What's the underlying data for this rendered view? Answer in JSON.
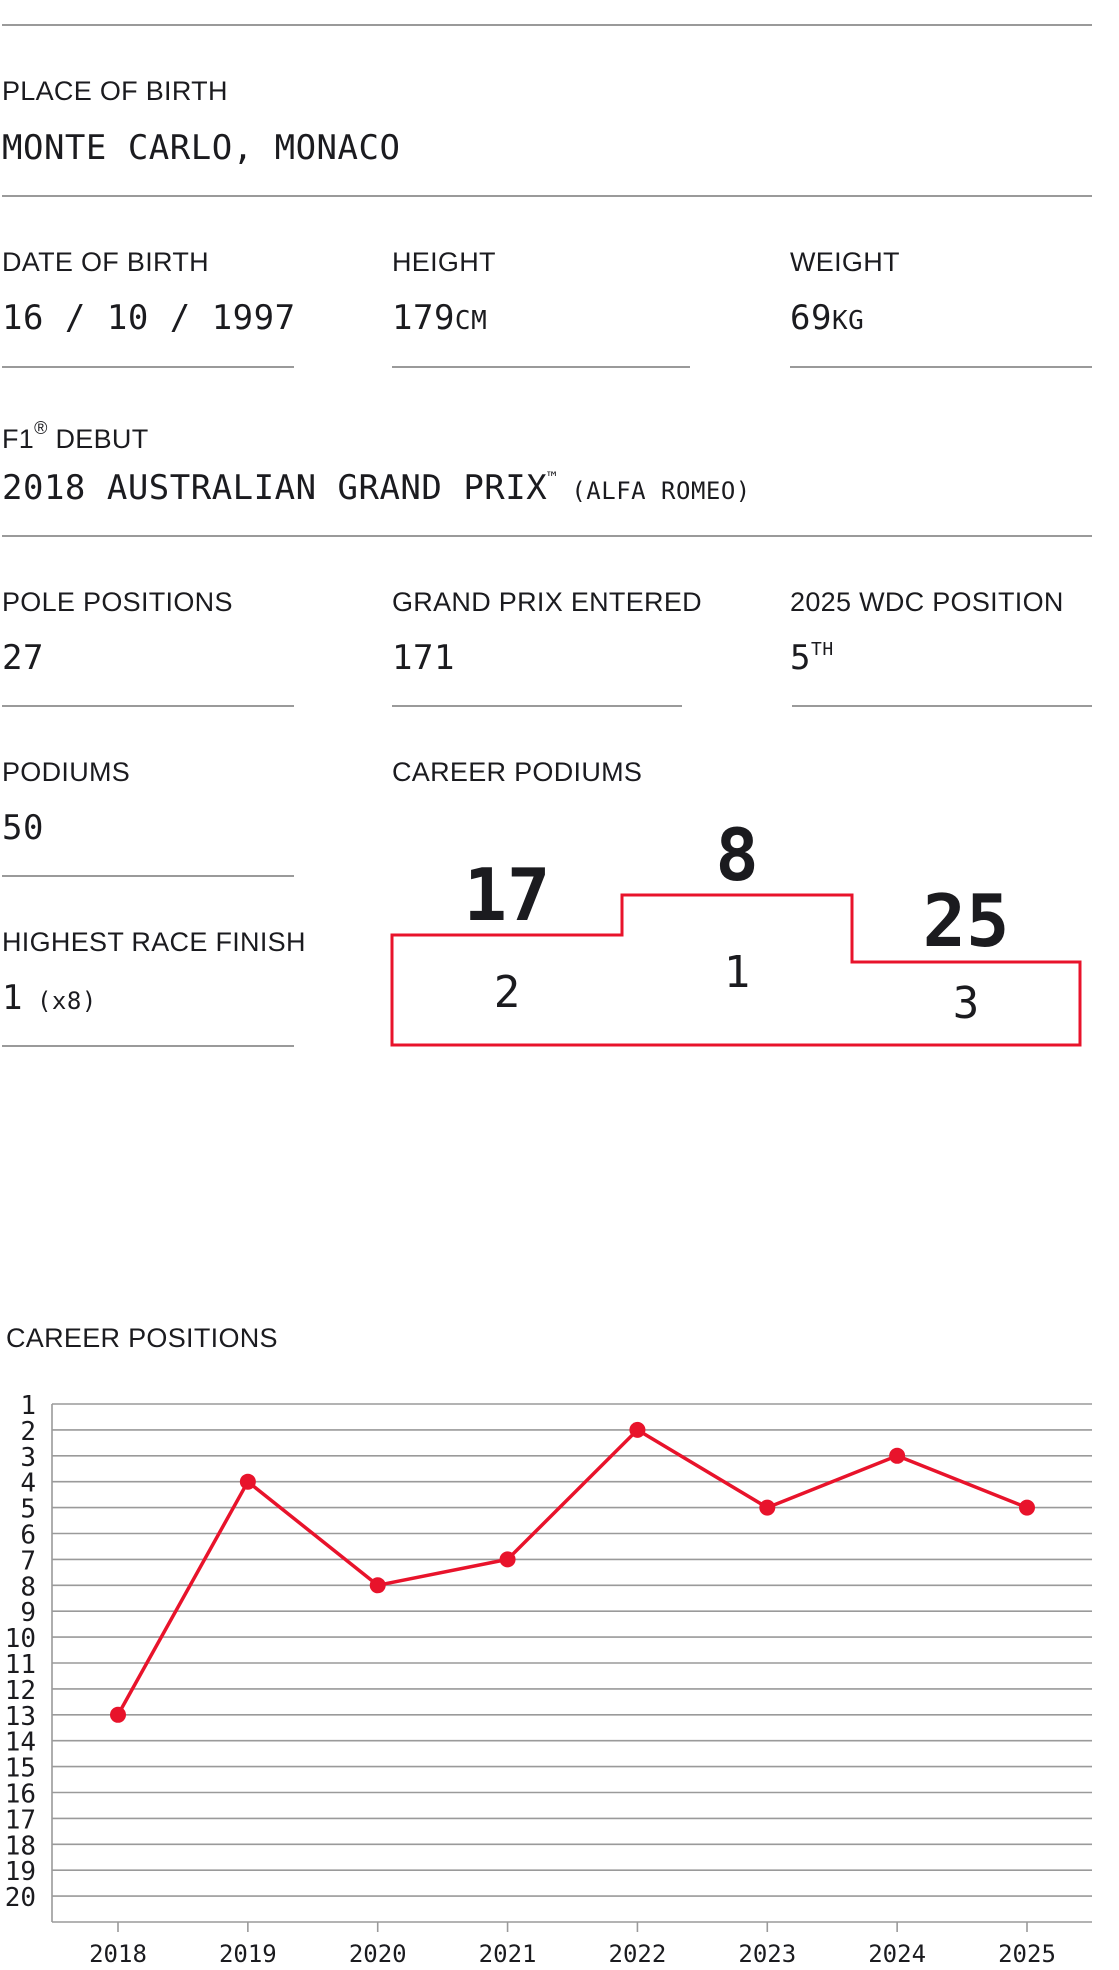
{
  "place_of_birth": {
    "label": "PLACE OF BIRTH",
    "value": "MONTE CARLO, MONACO"
  },
  "date_of_birth": {
    "label": "DATE OF BIRTH",
    "value": "16 / 10 / 1997"
  },
  "height": {
    "label": "HEIGHT",
    "value": "179",
    "unit": "CM"
  },
  "weight": {
    "label": "WEIGHT",
    "value": "69",
    "unit": "KG"
  },
  "f1_debut": {
    "label_prefix": "F1",
    "label_mark": "®",
    "label_suffix": " DEBUT",
    "value": "2018 AUSTRALIAN GRAND PRIX",
    "value_mark": "™",
    "team": "(ALFA ROMEO)"
  },
  "pole_positions": {
    "label": "POLE POSITIONS",
    "value": "27"
  },
  "grand_prix_entered": {
    "label": "GRAND PRIX ENTERED",
    "value": "171"
  },
  "wdc_position": {
    "label": "2025 WDC POSITION",
    "value": "5",
    "suffix": "TH"
  },
  "podiums": {
    "label": "PODIUMS",
    "value": "50"
  },
  "highest_race_finish": {
    "label": "HIGHEST RACE FINISH",
    "value": "1",
    "count": "(x8)"
  },
  "career_podiums": {
    "label": "CAREER PODIUMS",
    "positions": [
      {
        "place": "2",
        "count": "17"
      },
      {
        "place": "1",
        "count": "8"
      },
      {
        "place": "3",
        "count": "25"
      }
    ]
  },
  "colors": {
    "accent": "#e8132b",
    "text": "#1b1b1f",
    "rule": "#9a9a9a"
  },
  "chart_data": {
    "type": "line",
    "title": "CAREER POSITIONS",
    "xlabel": "",
    "ylabel": "",
    "x": [
      "2018",
      "2019",
      "2020",
      "2021",
      "2022",
      "2023",
      "2024",
      "2025"
    ],
    "series": [
      {
        "values": [
          13,
          4,
          8,
          7,
          2,
          5,
          3,
          5
        ]
      }
    ],
    "ylim": [
      1,
      20
    ],
    "y_inverted": true,
    "y_ticks": [
      "1",
      "2",
      "3",
      "4",
      "5",
      "6",
      "7",
      "8",
      "9",
      "10",
      "11",
      "12",
      "13",
      "14",
      "15",
      "16",
      "17",
      "18",
      "19",
      "20"
    ],
    "grid": true,
    "legend": "none"
  }
}
